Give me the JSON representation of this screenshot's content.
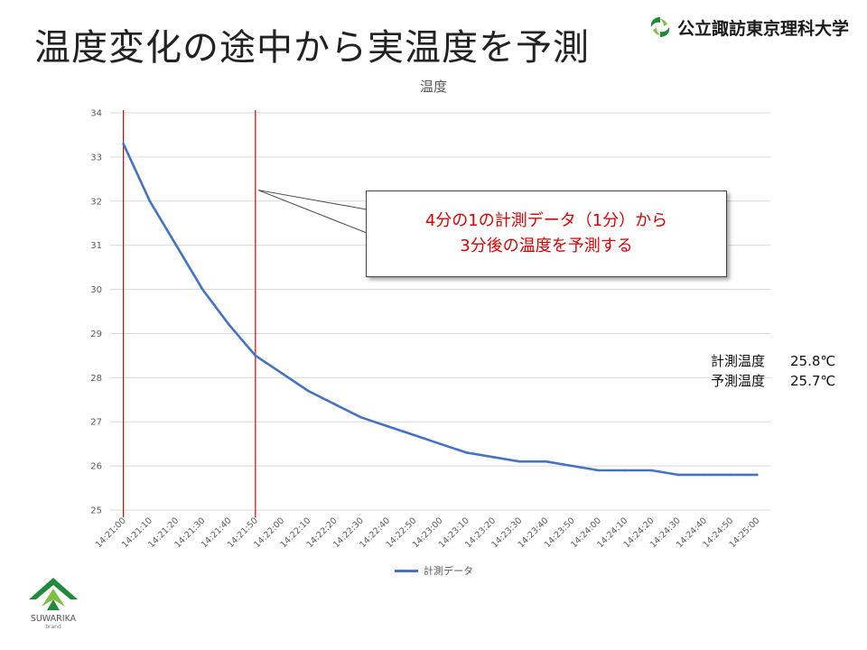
{
  "slide": {
    "title": "温度変化の途中から実温度を予測",
    "university": "公立諏訪東京理科大学"
  },
  "colors": {
    "line": "#4472c4",
    "marker_line": "#e00000",
    "callout_text": "#e00000",
    "grid": "#d9d9d9",
    "brand_green": "#1f8a3a"
  },
  "callout": {
    "line1": "4分の1の計測データ（1分）から",
    "line2": "3分後の温度を予測する"
  },
  "readings": [
    {
      "label": "計測温度",
      "value": "25.8℃"
    },
    {
      "label": "予測温度",
      "value": "25.7℃"
    }
  ],
  "brand": {
    "name": "SUWARIKA",
    "sub": "brand"
  },
  "chart_data": {
    "type": "line",
    "title": "温度",
    "xlabel": "",
    "ylabel": "",
    "ylim": [
      25,
      34
    ],
    "yticks": [
      "25",
      "26",
      "27",
      "28",
      "29",
      "30",
      "31",
      "32",
      "33",
      "34"
    ],
    "grid": true,
    "legend_position": "bottom",
    "categories": [
      "14:21:00",
      "14:21:10",
      "14:21:20",
      "14:21:30",
      "14:21:40",
      "14:21:50",
      "14:22:00",
      "14:22:10",
      "14:22:20",
      "14:22:30",
      "14:22:40",
      "14:22:50",
      "14:23:00",
      "14:23:10",
      "14:23:20",
      "14:23:30",
      "14:23:40",
      "14:23:50",
      "14:24:00",
      "14:24:10",
      "14:24:20",
      "14:24:30",
      "14:24:40",
      "14:24:50",
      "14:25:00"
    ],
    "series": [
      {
        "name": "計測データ",
        "values": [
          33.3,
          32.0,
          31.0,
          30.0,
          29.2,
          28.5,
          28.1,
          27.7,
          27.4,
          27.1,
          26.9,
          26.7,
          26.5,
          26.3,
          26.2,
          26.1,
          26.1,
          26.0,
          25.9,
          25.9,
          25.9,
          25.8,
          25.8,
          25.8,
          25.8
        ]
      }
    ],
    "markers": [
      {
        "at": "14:21:00"
      },
      {
        "at": "14:21:50"
      }
    ],
    "annotation_from": {
      "x": "14:21:50",
      "y": 32.25
    }
  }
}
